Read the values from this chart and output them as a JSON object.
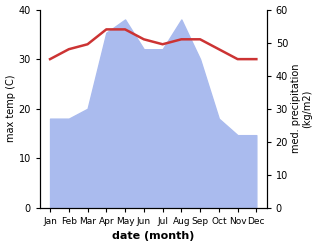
{
  "months": [
    "Jan",
    "Feb",
    "Mar",
    "Apr",
    "May",
    "Jun",
    "Jul",
    "Aug",
    "Sep",
    "Oct",
    "Nov",
    "Dec"
  ],
  "temp": [
    30,
    32,
    33,
    36,
    36,
    34,
    33,
    34,
    34,
    32,
    30,
    30
  ],
  "precip": [
    27,
    27,
    30,
    53,
    57,
    48,
    48,
    57,
    45,
    27,
    22,
    22
  ],
  "temp_color": "#cc3333",
  "precip_color": "#aabbee",
  "precip_edge_color": "#8899cc",
  "ylabel_left": "max temp (C)",
  "ylabel_right": "med. precipitation\n(kg/m2)",
  "xlabel": "date (month)",
  "ylim_left": [
    0,
    40
  ],
  "ylim_right": [
    0,
    60
  ],
  "yticks_left": [
    0,
    10,
    20,
    30,
    40
  ],
  "yticks_right": [
    0,
    10,
    20,
    30,
    40,
    50,
    60
  ],
  "bg_color": "#ffffff"
}
